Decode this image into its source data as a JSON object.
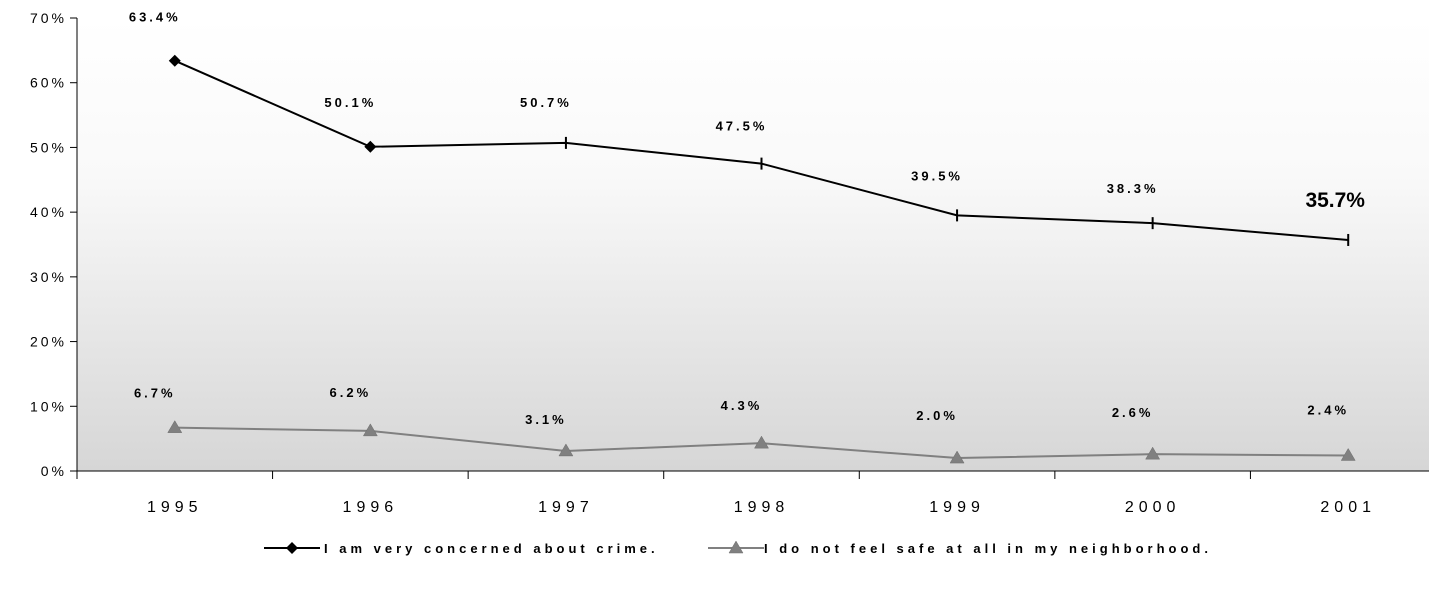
{
  "chart_data": {
    "type": "line",
    "categories": [
      "1995",
      "1996",
      "1997",
      "1998",
      "1999",
      "2000",
      "2001"
    ],
    "y_ticks": [
      "0%",
      "10%",
      "20%",
      "30%",
      "40%",
      "50%",
      "60%",
      "70%"
    ],
    "ylim": [
      0,
      70
    ],
    "grid": false,
    "legend_position": "bottom",
    "series": [
      {
        "name": "I am very concerned about crime.",
        "color": "#000000",
        "values": [
          63.4,
          50.1,
          50.7,
          47.5,
          39.5,
          38.3,
          35.7
        ],
        "labels": [
          "63.4%",
          "50.1%",
          "50.7%",
          "47.5%",
          "39.5%",
          "38.3%",
          "35.7%"
        ],
        "markers": [
          "diamond",
          "diamond",
          "tick",
          "tick",
          "tick",
          "tick",
          "tick"
        ]
      },
      {
        "name": "I do not feel safe at all in my neighborhood.",
        "color": "#808080",
        "values": [
          6.7,
          6.2,
          3.1,
          4.3,
          2.0,
          2.6,
          2.4
        ],
        "labels": [
          "6.7%",
          "6.2%",
          "3.1%",
          "4.3%",
          "2.0%",
          "2.6%",
          "2.4%"
        ],
        "markers": [
          "triangle",
          "triangle",
          "triangle",
          "triangle",
          "triangle",
          "triangle",
          "triangle"
        ]
      }
    ]
  }
}
